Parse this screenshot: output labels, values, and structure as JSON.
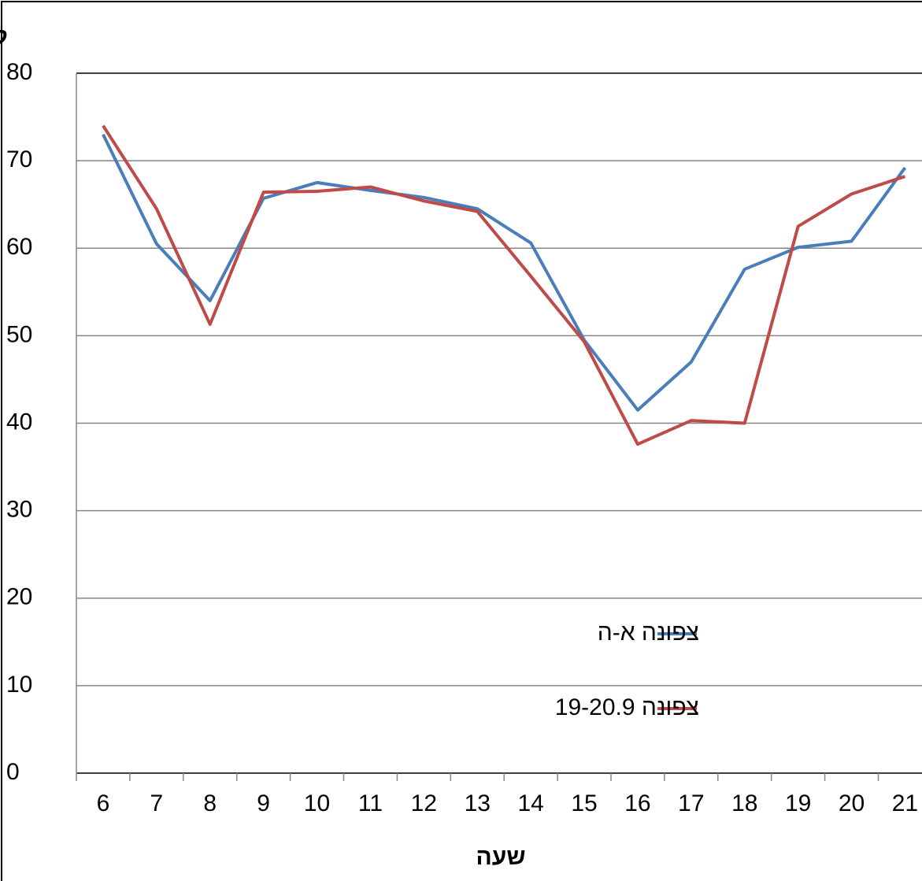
{
  "chart_data": {
    "type": "line",
    "y_label": "קמ\"ש",
    "x_label": "שעה",
    "categories": [
      "6",
      "7",
      "8",
      "9",
      "10",
      "11",
      "12",
      "13",
      "14",
      "15",
      "16",
      "17",
      "18",
      "19",
      "20",
      "21"
    ],
    "series": [
      {
        "name": "צפונה א-ה",
        "color": "#4a7ebb",
        "values": [
          73,
          60.5,
          54,
          65.7,
          67.5,
          66.6,
          65.8,
          64.5,
          60.6,
          49.5,
          41.5,
          47,
          57.6,
          60.1,
          60.8,
          69.2
        ]
      },
      {
        "name": "צפונה 19-20.9",
        "color": "#be4b48",
        "values": [
          74,
          64.5,
          51.3,
          66.4,
          66.5,
          67,
          65.4,
          64.2,
          56.8,
          49.3,
          37.6,
          40.3,
          40,
          62.5,
          66.2,
          68.2
        ]
      }
    ],
    "ylim": [
      0,
      80
    ],
    "yticks": [
      0,
      10,
      20,
      30,
      40,
      50,
      60,
      70,
      80
    ],
    "grid": true
  }
}
